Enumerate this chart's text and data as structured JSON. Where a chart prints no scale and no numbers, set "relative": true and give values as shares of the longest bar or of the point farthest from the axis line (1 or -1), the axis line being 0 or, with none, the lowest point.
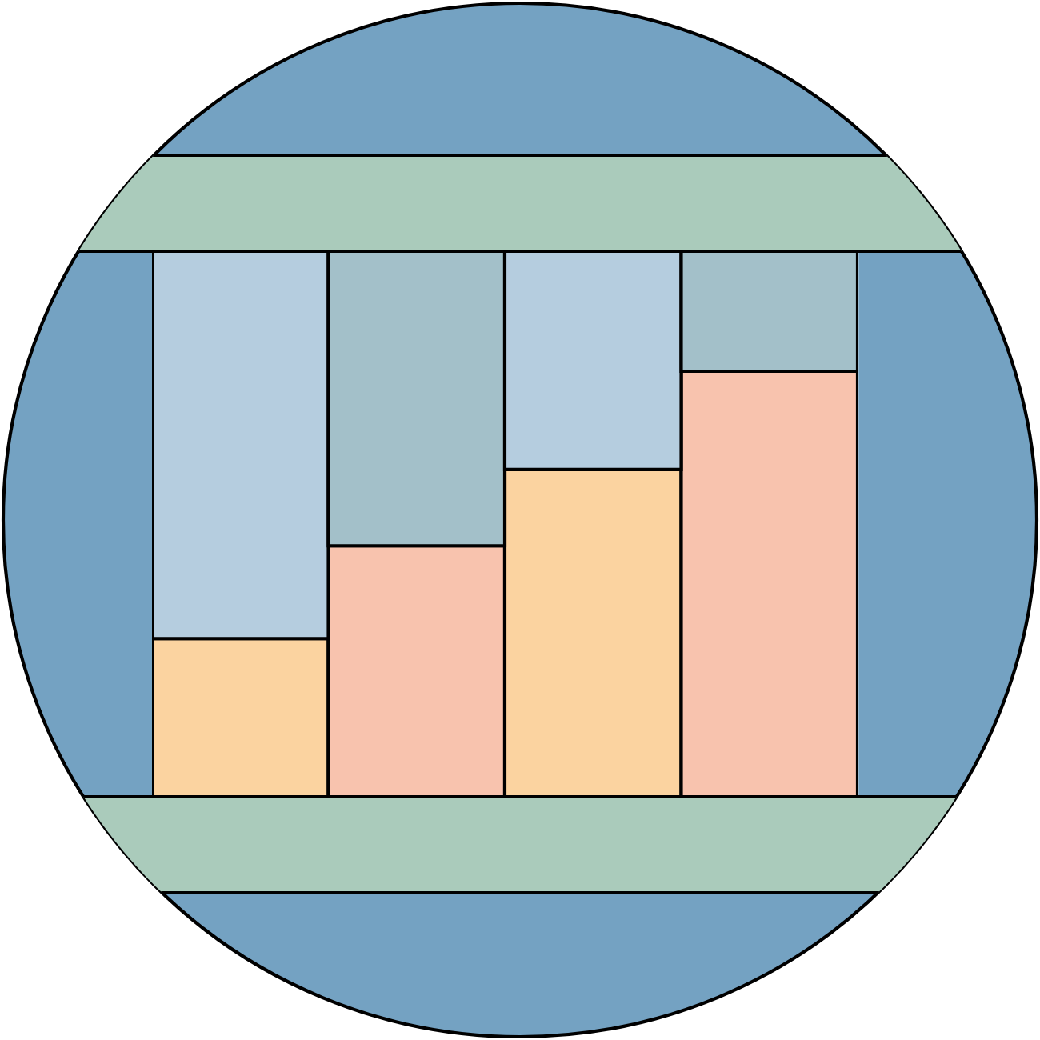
{
  "chart_data": {
    "type": "bar",
    "stacked": true,
    "relative": true,
    "tick_labels": false,
    "categories": [
      null,
      null,
      null,
      null
    ],
    "series": [
      {
        "colors": [
          "#fbd3a0",
          "#f8c3ae",
          "#fbd3a0",
          "#f8c3ae"
        ],
        "values": [
          0.29,
          0.46,
          0.6,
          0.78
        ]
      },
      {
        "colors": [
          "#b5cddf",
          "#a3c0c9",
          "#b5cddf",
          "#a3c0c9"
        ],
        "values": [
          0.71,
          0.54,
          0.4,
          0.22
        ]
      }
    ]
  }
}
